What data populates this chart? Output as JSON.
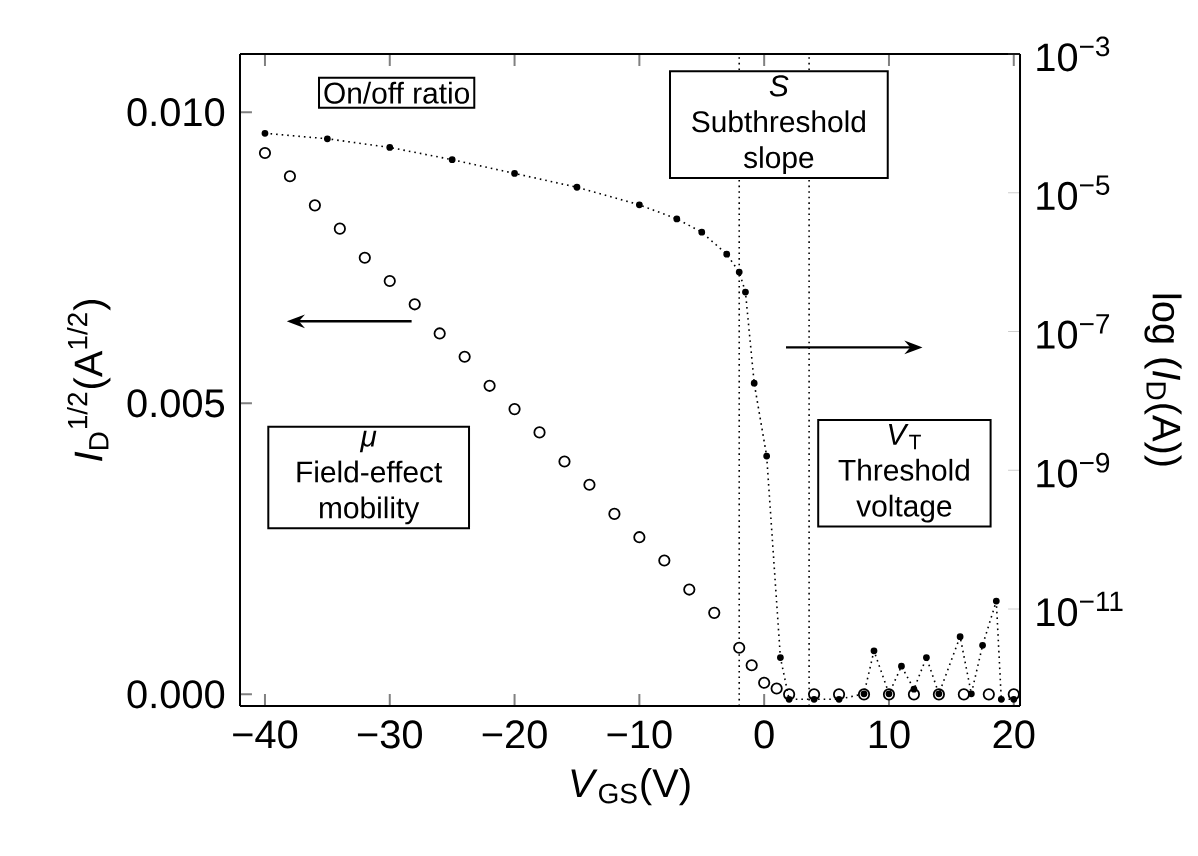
{
  "chart_data": {
    "type": "line",
    "xlabel": "*V*$_{GS}$(V)",
    "ylabel": "*I*$_{D}$$^{1/2}$(A$^{1/2}$)",
    "y2label": "log (*I*$_{D}$(A))",
    "xlim": [
      -42,
      20.5
    ],
    "ylim": [
      -0.0002,
      0.011
    ],
    "y2lim": [
      4e-13,
      0.001
    ],
    "log": "y2",
    "grid": false,
    "xticks": [
      {
        "value": -40,
        "label": "−40"
      },
      {
        "value": -30,
        "label": "−30"
      },
      {
        "value": -20,
        "label": "−20"
      },
      {
        "value": -10,
        "label": "−10"
      },
      0,
      10,
      20
    ],
    "yticks": [
      {
        "value": 0,
        "label": "0.000"
      },
      {
        "value": 0.005,
        "label": "0.005"
      },
      {
        "value": 0.01,
        "label": "0.010"
      }
    ],
    "y2ticks": [
      {
        "value": 0.001,
        "label": "10$^{−3}$"
      },
      {
        "value": 1e-05,
        "label": "10$^{−5}$"
      },
      {
        "value": 1e-07,
        "label": "10$^{−7}$"
      },
      {
        "value": 1e-09,
        "label": "10$^{−9}$"
      },
      {
        "value": 1e-11,
        "label": "10$^{−11}$"
      }
    ],
    "series": [
      {
        "type": "scatter",
        "marker": "circle",
        "color": "#000000",
        "x": [
          -40,
          -38,
          -36,
          -34,
          -32,
          -30,
          -28,
          -26,
          -24,
          -22,
          -20,
          -18,
          -16,
          -14,
          -12,
          -10,
          -8,
          -6,
          -4,
          -2,
          -1,
          0,
          1,
          2,
          4,
          6,
          8,
          10,
          12,
          14,
          16,
          18,
          20
        ],
        "values": [
          0.0093,
          0.0089,
          0.0084,
          0.008,
          0.0075,
          0.0071,
          0.0067,
          0.0062,
          0.0058,
          0.0053,
          0.0049,
          0.0045,
          0.004,
          0.0036,
          0.0031,
          0.0027,
          0.0023,
          0.0018,
          0.0014,
          0.0008,
          0.0005,
          0.0002,
          0.0001,
          0,
          0,
          0,
          0,
          0,
          0,
          0,
          0,
          0,
          0
        ]
      },
      {
        "axis": "y2",
        "marker": "circle",
        "line_style": "dotted",
        "color": "#000000",
        "x": [
          -40,
          -35,
          -30,
          -25,
          -20,
          -15,
          -10,
          -7,
          -5,
          -3,
          -2,
          -1.5,
          -0.8,
          0.2,
          1.3,
          2,
          4,
          6,
          8,
          8.8,
          10,
          11,
          12,
          13,
          14,
          15.7,
          16.6,
          17.5,
          18.6,
          19,
          20
        ],
        "values": [
          7.2e-05,
          6e-05,
          4.5e-05,
          3e-05,
          1.9e-05,
          1.2e-05,
          6.7e-06,
          4.2e-06,
          2.7e-06,
          1.3e-06,
          7.2e-07,
          3.7e-07,
          1.8e-08,
          1.6e-09,
          2e-12,
          5e-13,
          5e-13,
          5e-13,
          6e-13,
          2.5e-12,
          6e-13,
          1.5e-12,
          7e-13,
          2e-12,
          6e-13,
          4e-12,
          6e-13,
          3e-12,
          1.3e-11,
          5e-13,
          5e-13
        ]
      }
    ],
    "ref_lines": [
      {
        "axis": "x",
        "value": -2,
        "line_style": "dotted",
        "color": "#000000"
      },
      {
        "axis": "x",
        "value": 3.6,
        "line_style": "dotted",
        "color": "#000000"
      }
    ],
    "annotations": [
      "On/off ratio",
      "*S*",
      "Subthreshold slope",
      "*μ*",
      "Field-effect mobility",
      "*V*$_{T}$",
      "Threshold voltage"
    ]
  }
}
